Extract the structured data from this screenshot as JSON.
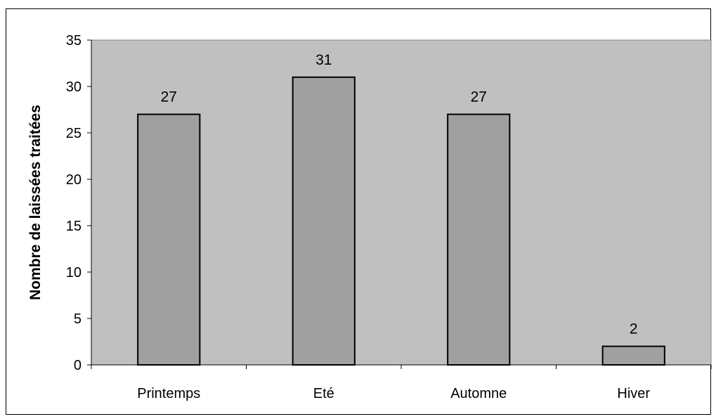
{
  "chart_data": {
    "type": "bar",
    "categories": [
      "Printemps",
      "Eté",
      "Automne",
      "Hiver"
    ],
    "values": [
      27,
      31,
      27,
      2
    ],
    "data_labels": [
      "27",
      "31",
      "27",
      "2"
    ],
    "xlabel": "",
    "ylabel": "Nombre de laissées traitées",
    "ylim": [
      0,
      35
    ],
    "yticks": [
      "0",
      "5",
      "10",
      "15",
      "20",
      "25",
      "30",
      "35"
    ],
    "grid": false,
    "legend": "none",
    "colors": {
      "plot_background": "#c0c0c0",
      "bar_fill": "#a0a0a0",
      "bar_stroke": "#000000"
    }
  }
}
